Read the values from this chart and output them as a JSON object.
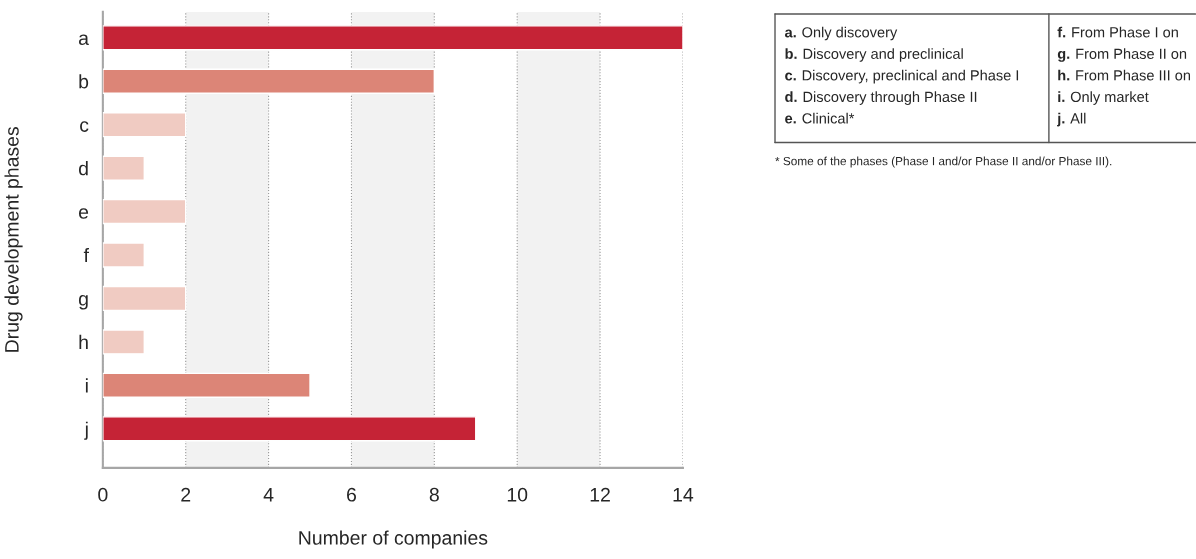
{
  "chart_data": {
    "type": "bar",
    "orientation": "horizontal",
    "categories": [
      "a",
      "b",
      "c",
      "d",
      "e",
      "f",
      "g",
      "h",
      "i",
      "j"
    ],
    "values": [
      14,
      8,
      2,
      1,
      2,
      1,
      2,
      1,
      5,
      9
    ],
    "colors": [
      "#c52336",
      "#dc8577",
      "#f0cbc2",
      "#f0cbc2",
      "#f0cbc2",
      "#f0cbc2",
      "#f0cbc2",
      "#f0cbc2",
      "#dc8577",
      "#c52336"
    ],
    "xlabel": "Number of companies",
    "ylabel": "Drug development phases",
    "xlim": [
      0,
      14
    ],
    "xticks": [
      0,
      2,
      4,
      6,
      8,
      10,
      12,
      14
    ],
    "grid": "x",
    "bands": [
      {
        "axis": "x",
        "from": 2,
        "to": 4,
        "color": "#f2f2f2"
      },
      {
        "axis": "x",
        "from": 6,
        "to": 8,
        "color": "#f2f2f2"
      },
      {
        "axis": "x",
        "from": 10,
        "to": 12,
        "color": "#f2f2f2"
      }
    ],
    "annotations": [
      "a. Only discovery",
      "b. Discovery and preclinical",
      "c. Discovery, preclinical and Phase I",
      "d. Discovery through Phase II",
      "e. Clinical*",
      "f. From Phase I on",
      "g. From Phase II on",
      "h. From Phase III on",
      "i. Only market",
      "j. All",
      "* Some of the phases (Phase I and/or Phase II and/or Phase III)."
    ]
  }
}
